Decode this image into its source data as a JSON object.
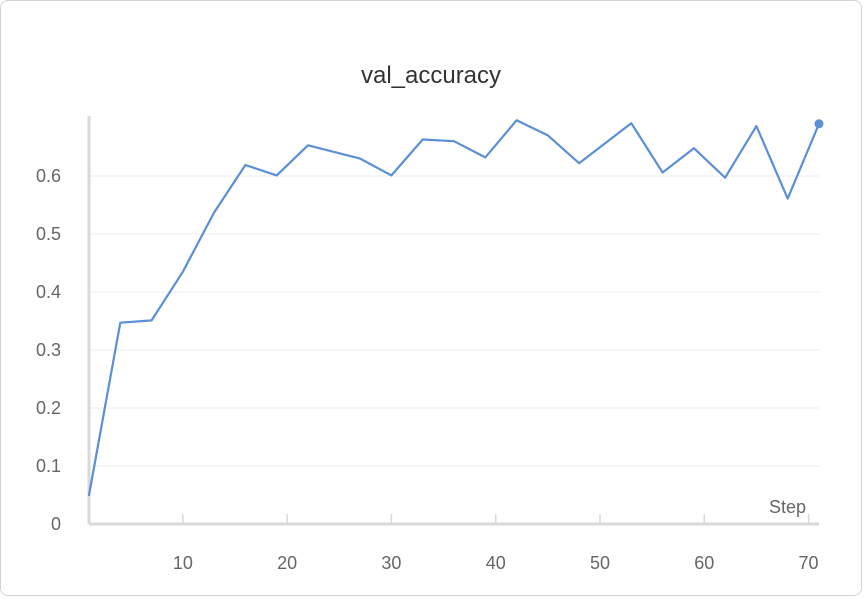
{
  "chart_data": {
    "type": "line",
    "title": "val_accuracy",
    "xlabel": "Step",
    "ylabel": "",
    "xlim": [
      1,
      71
    ],
    "ylim": [
      0,
      0.7
    ],
    "xticks": [
      10,
      20,
      30,
      40,
      50,
      60,
      70
    ],
    "yticks": [
      0,
      0.1,
      0.2,
      0.3,
      0.4,
      0.5,
      0.6
    ],
    "grid": true,
    "color": "#5b8fd6",
    "series": [
      {
        "x": [
          1,
          4,
          7,
          10,
          13,
          16,
          19,
          22,
          27,
          30,
          33,
          36,
          39,
          42,
          45,
          48,
          53,
          56,
          59,
          62,
          65,
          68,
          71
        ],
        "values": [
          0.05,
          0.347,
          0.351,
          0.435,
          0.537,
          0.619,
          0.601,
          0.653,
          0.63,
          0.601,
          0.663,
          0.66,
          0.632,
          0.696,
          0.67,
          0.622,
          0.691,
          0.606,
          0.648,
          0.597,
          0.686,
          0.561,
          0.69
        ]
      }
    ]
  }
}
